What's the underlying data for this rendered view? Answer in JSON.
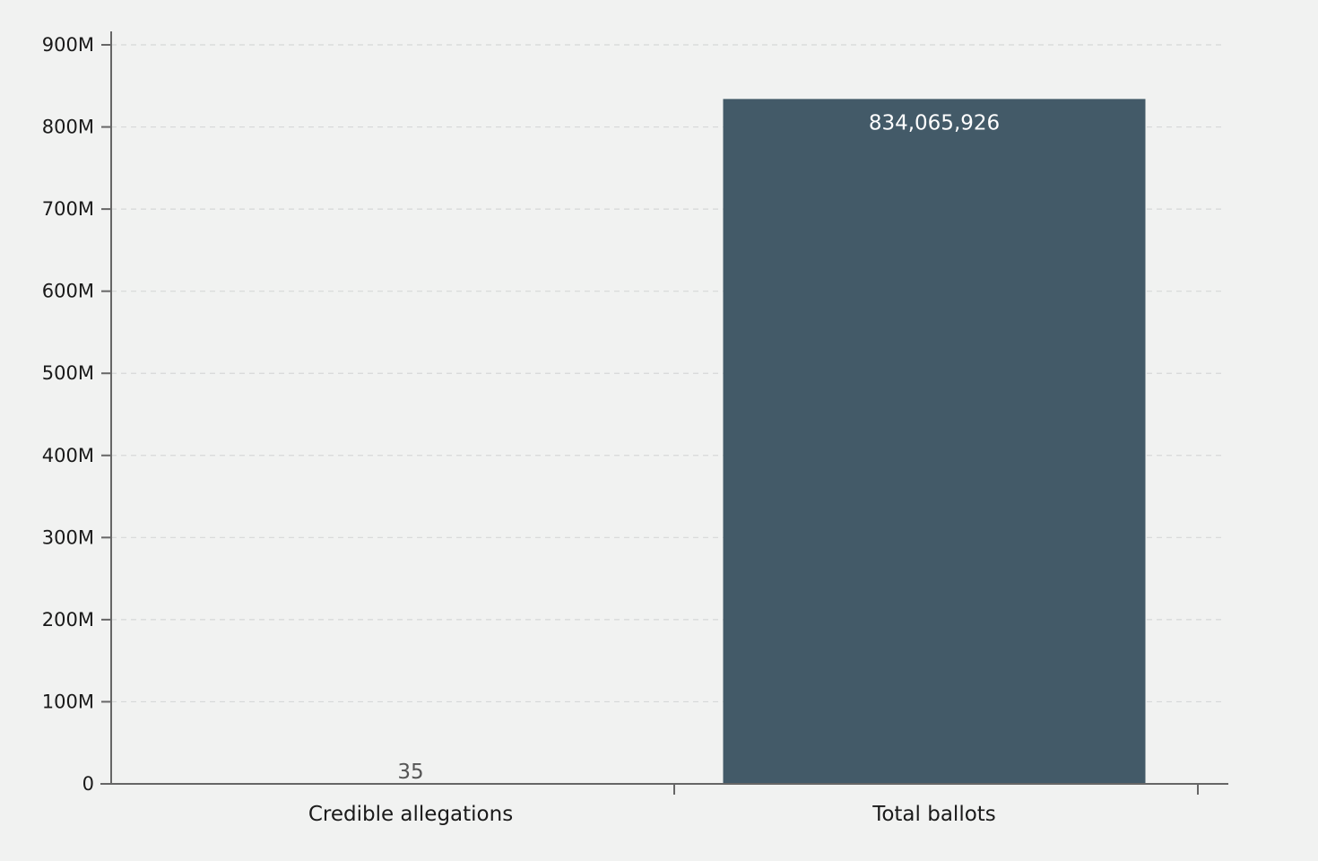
{
  "chart_data": {
    "type": "bar",
    "categories": [
      "Credible allegations",
      "Total ballots"
    ],
    "values": [
      35,
      834065926
    ],
    "value_labels": [
      "35",
      "834,065,926"
    ],
    "ylim": [
      0,
      900000000
    ],
    "yticks": [
      0,
      100000000,
      200000000,
      300000000,
      400000000,
      500000000,
      600000000,
      700000000,
      800000000,
      900000000
    ],
    "ytick_labels": [
      "0",
      "100M",
      "200M",
      "300M",
      "400M",
      "500M",
      "600M",
      "700M",
      "800M",
      "900M"
    ],
    "grid": true,
    "title": "",
    "xlabel": "",
    "ylabel": "",
    "colors": {
      "bar": "#435a68",
      "background": "#f1f2f1"
    }
  }
}
